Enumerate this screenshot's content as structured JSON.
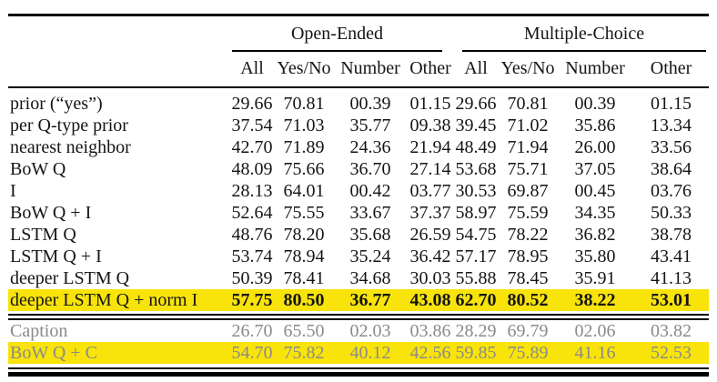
{
  "table": {
    "group_headers": [
      {
        "label": "Open-Ended",
        "colspan": 4
      },
      {
        "label": "Multiple-Choice",
        "colspan": 4
      }
    ],
    "sub_headers": [
      "All",
      "Yes/No",
      "Number",
      "Other",
      "All",
      "Yes/No",
      "Number",
      "Other"
    ],
    "rows": [
      {
        "label": "prior (“yes”)",
        "values": [
          "29.66",
          "70.81",
          "00.39",
          "01.15",
          "29.66",
          "70.81",
          "00.39",
          "01.15"
        ],
        "style": "normal"
      },
      {
        "label": "per Q-type prior",
        "values": [
          "37.54",
          "71.03",
          "35.77",
          "09.38",
          "39.45",
          "71.02",
          "35.86",
          "13.34"
        ],
        "style": "normal"
      },
      {
        "label": "nearest neighbor",
        "values": [
          "42.70",
          "71.89",
          "24.36",
          "21.94",
          "48.49",
          "71.94",
          "26.00",
          "33.56"
        ],
        "style": "normal"
      },
      {
        "label": "BoW Q",
        "values": [
          "48.09",
          "75.66",
          "36.70",
          "27.14",
          "53.68",
          "75.71",
          "37.05",
          "38.64"
        ],
        "style": "normal"
      },
      {
        "label": "I",
        "values": [
          "28.13",
          "64.01",
          "00.42",
          "03.77",
          "30.53",
          "69.87",
          "00.45",
          "03.76"
        ],
        "style": "normal"
      },
      {
        "label": "BoW Q + I",
        "values": [
          "52.64",
          "75.55",
          "33.67",
          "37.37",
          "58.97",
          "75.59",
          "34.35",
          "50.33"
        ],
        "style": "normal"
      },
      {
        "label": "LSTM Q",
        "values": [
          "48.76",
          "78.20",
          "35.68",
          "26.59",
          "54.75",
          "78.22",
          "36.82",
          "38.78"
        ],
        "style": "normal"
      },
      {
        "label": "LSTM Q + I",
        "values": [
          "53.74",
          "78.94",
          "35.24",
          "36.42",
          "57.17",
          "78.95",
          "35.80",
          "43.41"
        ],
        "style": "normal"
      },
      {
        "label": "deeper LSTM Q",
        "values": [
          "50.39",
          "78.41",
          "34.68",
          "30.03",
          "55.88",
          "78.45",
          "35.91",
          "41.13"
        ],
        "style": "normal"
      },
      {
        "label": "deeper LSTM Q + norm I",
        "values": [
          "57.75",
          "80.50",
          "36.77",
          "43.08",
          "62.70",
          "80.52",
          "38.22",
          "53.01"
        ],
        "style": "highlight"
      }
    ],
    "footer_rows": [
      {
        "label": "Caption",
        "values": [
          "26.70",
          "65.50",
          "02.03",
          "03.86",
          "28.29",
          "69.79",
          "02.06",
          "03.82"
        ],
        "style": "muted"
      },
      {
        "label": "BoW Q + C",
        "values": [
          "54.70",
          "75.82",
          "40.12",
          "42.56",
          "59.85",
          "75.89",
          "41.16",
          "52.53"
        ],
        "style": "muted-highlight"
      }
    ],
    "colors": {
      "highlight": "#f8e40a",
      "muted_text": "#8a8a8a",
      "rule": "#000000"
    }
  }
}
